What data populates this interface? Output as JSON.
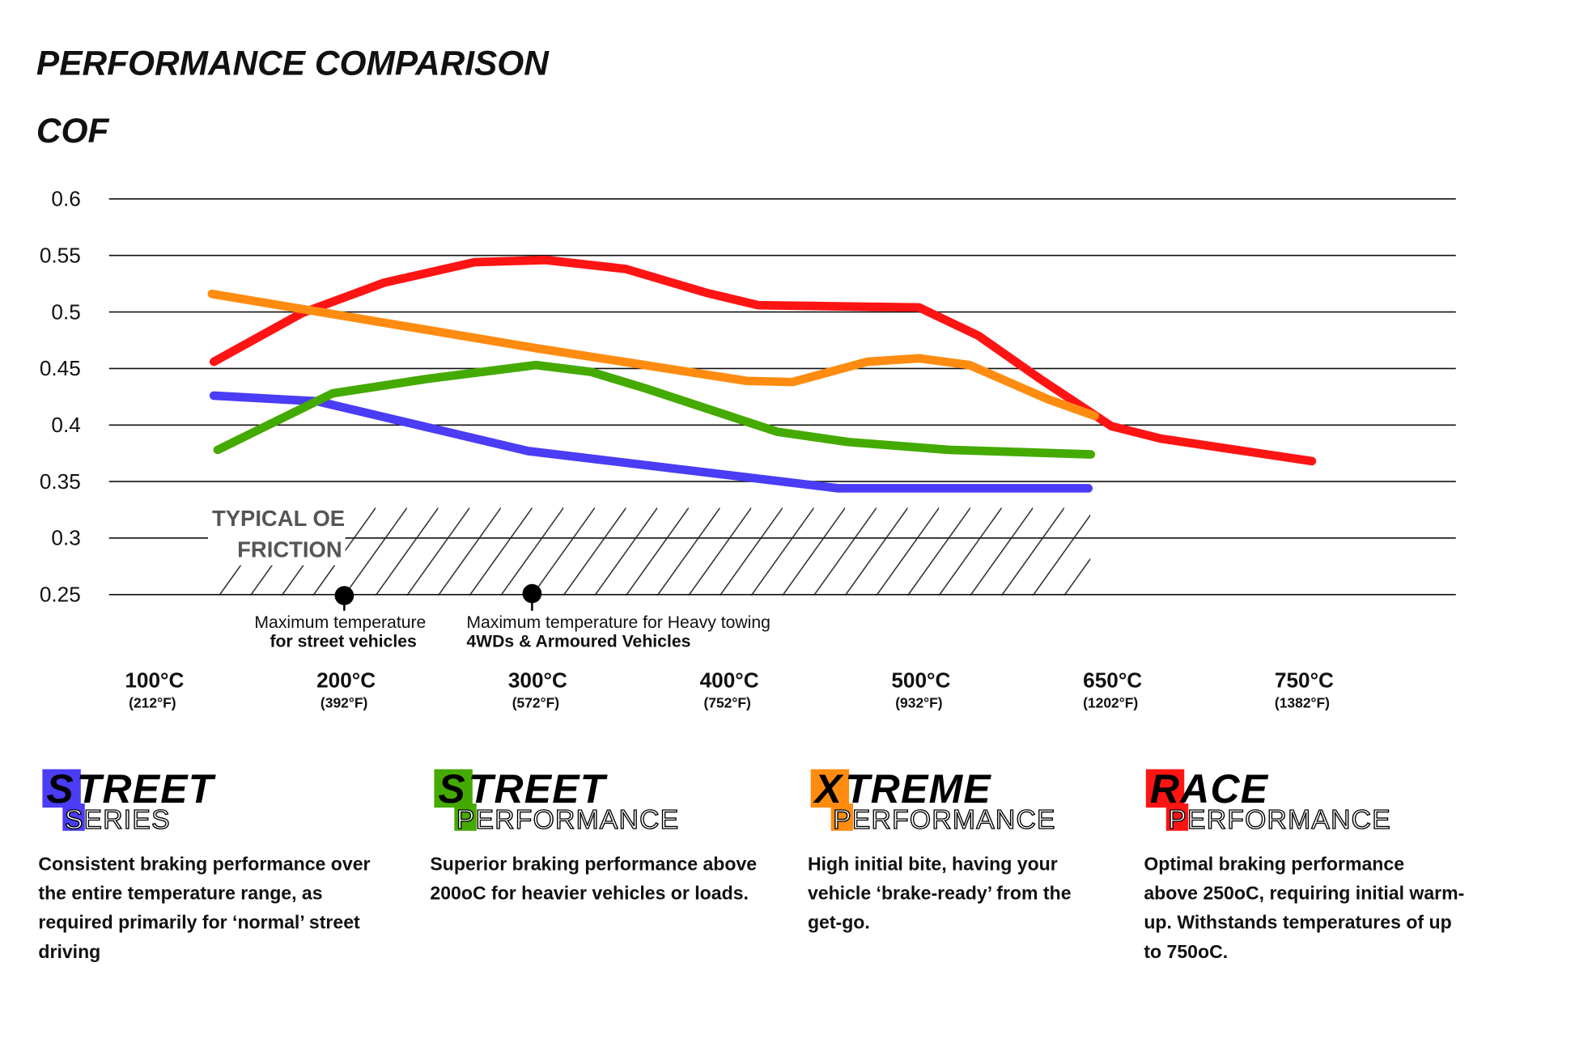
{
  "title": "PERFORMANCE COMPARISON",
  "chart_data": {
    "type": "line",
    "title": "PERFORMANCE COMPARISON",
    "ylabel": "COF",
    "xlabel": "",
    "ylim": [
      0.25,
      0.6
    ],
    "y_ticks": [
      "0.6",
      "0.55",
      "0.5",
      "0.45",
      "0.4",
      "0.35",
      "0.3",
      "0.25"
    ],
    "y_tick_values": [
      0.6,
      0.55,
      0.5,
      0.45,
      0.4,
      0.35,
      0.3,
      0.25
    ],
    "x_tick_values": [
      100,
      200,
      300,
      400,
      500,
      650,
      750
    ],
    "x_ticks": [
      {
        "c": "100°C",
        "f": "(212°F)"
      },
      {
        "c": "200°C",
        "f": "(392°F)"
      },
      {
        "c": "300°C",
        "f": "(572°F)"
      },
      {
        "c": "400°C",
        "f": "(752°F)"
      },
      {
        "c": "500°C",
        "f": "(932°F)"
      },
      {
        "c": "650°C",
        "f": "(1202°F)"
      },
      {
        "c": "750°C",
        "f": "(1382°F)"
      }
    ],
    "grid": true,
    "series": [
      {
        "color": "#ff1414",
        "points": [
          [
            131,
            0.456
          ],
          [
            177,
            0.499
          ],
          [
            220,
            0.526
          ],
          [
            267,
            0.544
          ],
          [
            304,
            0.546
          ],
          [
            346,
            0.538
          ],
          [
            388,
            0.517
          ],
          [
            415,
            0.506
          ],
          [
            499,
            0.504
          ],
          [
            545,
            0.479
          ],
          [
            593,
            0.441
          ],
          [
            637,
            0.408
          ],
          [
            649,
            0.399
          ],
          [
            675,
            0.388
          ],
          [
            754,
            0.368
          ]
        ]
      },
      {
        "color": "#4b3cf5",
        "points": [
          [
            131,
            0.426
          ],
          [
            185,
            0.421
          ],
          [
            295,
            0.377
          ],
          [
            457,
            0.344
          ],
          [
            631,
            0.344
          ]
        ]
      },
      {
        "color": "#44aa00",
        "points": [
          [
            133,
            0.378
          ],
          [
            193,
            0.428
          ],
          [
            243,
            0.441
          ],
          [
            299,
            0.453
          ],
          [
            328,
            0.447
          ],
          [
            357,
            0.432
          ],
          [
            425,
            0.394
          ],
          [
            462,
            0.385
          ],
          [
            522,
            0.378
          ],
          [
            633,
            0.374
          ]
        ]
      },
      {
        "color": "#ff8c10",
        "points": [
          [
            130,
            0.516
          ],
          [
            299,
            0.468
          ],
          [
            409,
            0.439
          ],
          [
            433,
            0.438
          ],
          [
            472,
            0.456
          ],
          [
            499,
            0.459
          ],
          [
            538,
            0.453
          ],
          [
            599,
            0.423
          ],
          [
            636,
            0.408
          ]
        ]
      }
    ],
    "shaded_region": {
      "label_line1": "TYPICAL OE",
      "label_line2": "FRICTION",
      "y_from": 0.25,
      "y_to": 0.35,
      "x_from": 130,
      "x_to": 633
    },
    "annotations": [
      {
        "x": 200,
        "line1": "Maximum temperature",
        "line2": "for street vehicles"
      },
      {
        "x": 300,
        "line1": "Maximum temperature for Heavy towing",
        "line2": "4WDs & Armoured Vehicles"
      }
    ]
  },
  "products": [
    {
      "first": "S",
      "main": "TREET",
      "sub_first": "S",
      "sub": "ERIES",
      "color": "#4b3cf5",
      "desc": [
        "Consistent braking performance over",
        "the entire temperature range, as",
        "required primarily for ‘normal’ street",
        "driving"
      ]
    },
    {
      "first": "S",
      "main": "TREET",
      "sub_first": "P",
      "sub": "ERFORMANCE",
      "color": "#44aa00",
      "desc": [
        "Superior braking performance above",
        "200oC for heavier vehicles or loads."
      ]
    },
    {
      "first": "X",
      "main": "TREME",
      "sub_first": "P",
      "sub": "ERFORMANCE",
      "color": "#ff8c10",
      "desc": [
        "High initial bite, having your",
        "vehicle ‘brake-ready’ from the",
        "get-go."
      ]
    },
    {
      "first": "R",
      "main": "ACE",
      "sub_first": "P",
      "sub": "ERFORMANCE",
      "color": "#ff1414",
      "desc": [
        "Optimal braking performance",
        "above 250oC, requiring initial warm-",
        "up. Withstands temperatures of up",
        "to 750oC."
      ]
    }
  ]
}
